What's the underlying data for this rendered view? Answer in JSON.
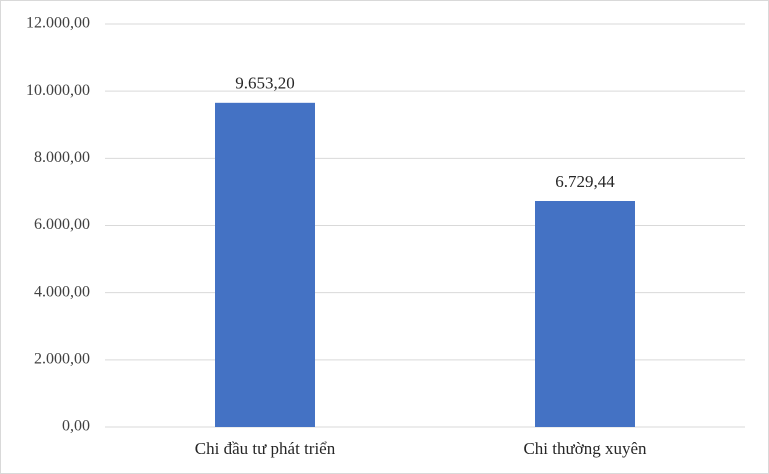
{
  "chart_data": {
    "type": "bar",
    "categories": [
      "Chi đầu tư phát triển",
      "Chi thường xuyên"
    ],
    "values": [
      9653.2,
      6729.44
    ],
    "value_labels": [
      "9.653,20",
      "6.729,44"
    ],
    "color": "#4472c4",
    "ylim": [
      0,
      12000
    ],
    "yticks": [
      {
        "value": 0,
        "label": "0,00"
      },
      {
        "value": 2000,
        "label": "2.000,00"
      },
      {
        "value": 4000,
        "label": "4.000,00"
      },
      {
        "value": 6000,
        "label": "6.000,00"
      },
      {
        "value": 8000,
        "label": "8.000,00"
      },
      {
        "value": 10000,
        "label": "10.000,00"
      },
      {
        "value": 12000,
        "label": "12.000,00"
      }
    ],
    "grid": true
  }
}
